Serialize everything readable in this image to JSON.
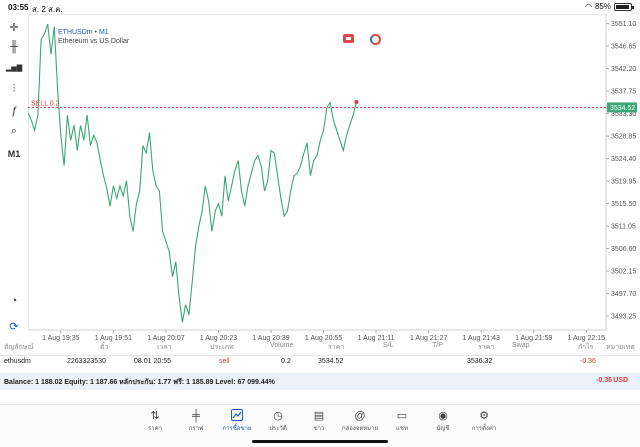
{
  "status": {
    "time": "03:55",
    "date": "ส. 2 ส.ค.",
    "battery": "85%"
  },
  "chart": {
    "symbol_line": "ETHUSDm • M1",
    "description": "Ethereum vs US Dollar",
    "sell_label": "SELL 0.2",
    "current_price_label": "3534.52",
    "colors": {
      "line": "#3aa874",
      "sell": "#e03b3b",
      "current": "#3aa874"
    },
    "toolbar": [
      {
        "name": "crosshair-icon",
        "glyph": "✛"
      },
      {
        "name": "candles-icon",
        "glyph": "╫"
      },
      {
        "name": "bar-type-icon",
        "glyph": "▂▅▇"
      },
      {
        "name": "indicators-icon",
        "glyph": "⫶"
      },
      {
        "name": "function-icon",
        "glyph": "ƒ"
      },
      {
        "name": "objects-icon",
        "glyph": "⌕"
      },
      {
        "name": "timeframe",
        "glyph": "M1"
      }
    ],
    "bottom_tools": [
      {
        "name": "speedometer-icon",
        "glyph": "◔"
      },
      {
        "name": "sync-icon",
        "glyph": "⟳"
      }
    ]
  },
  "chart_data": {
    "type": "line",
    "y_ticks": [
      "3551.10",
      "3546.65",
      "3542.20",
      "3537.75",
      "3533.30",
      "3528.85",
      "3524.40",
      "3519.95",
      "3515.50",
      "3511.05",
      "3506.60",
      "3502.15",
      "3497.70",
      "3493.25"
    ],
    "x_ticks": [
      "1 Aug 19:35",
      "1 Aug 19:51",
      "1 Aug 20:07",
      "1 Aug 20:23",
      "1 Aug 20:39",
      "1 Aug 20:55",
      "1 Aug 21:11",
      "1 Aug 21:27",
      "1 Aug 21:43",
      "1 Aug 21:59",
      "1 Aug 22:15"
    ],
    "ylim": [
      3490.5,
      3553.0
    ],
    "x_range_minutes": [
      0,
      176
    ],
    "sell_price": 3534.52,
    "current_price": 3534.52,
    "series": [
      {
        "values": [
          [
            0,
            3533.5
          ],
          [
            1,
            3532.0
          ],
          [
            2,
            3530.0
          ],
          [
            3,
            3533.0
          ],
          [
            4,
            3548.0
          ],
          [
            5,
            3549.0
          ],
          [
            6,
            3551.0
          ],
          [
            7,
            3545.0
          ],
          [
            8,
            3550.5
          ],
          [
            9,
            3538.0
          ],
          [
            10,
            3529.0
          ],
          [
            11,
            3523.0
          ],
          [
            12,
            3533.0
          ],
          [
            13,
            3528.0
          ],
          [
            14,
            3531.0
          ],
          [
            15,
            3526.0
          ],
          [
            16,
            3531.0
          ],
          [
            17,
            3528.0
          ],
          [
            18,
            3533.0
          ],
          [
            19,
            3527.0
          ],
          [
            20,
            3529.0
          ],
          [
            21,
            3527.5
          ],
          [
            22,
            3524.0
          ],
          [
            23,
            3521.0
          ],
          [
            24,
            3518.5
          ],
          [
            25,
            3515.0
          ],
          [
            26,
            3519.0
          ],
          [
            27,
            3516.5
          ],
          [
            28,
            3519.0
          ],
          [
            29,
            3517.0
          ],
          [
            30,
            3520.0
          ],
          [
            31,
            3513.0
          ],
          [
            32,
            3510.0
          ],
          [
            33,
            3515.5
          ],
          [
            34,
            3518.0
          ],
          [
            35,
            3527.0
          ],
          [
            36,
            3525.5
          ],
          [
            37,
            3529.5
          ],
          [
            38,
            3522.0
          ],
          [
            39,
            3519.0
          ],
          [
            40,
            3518.0
          ],
          [
            41,
            3510.0
          ],
          [
            42,
            3508.0
          ],
          [
            43,
            3506.0
          ],
          [
            44,
            3501.0
          ],
          [
            45,
            3504.0
          ],
          [
            46,
            3497.0
          ],
          [
            47,
            3492.0
          ],
          [
            48,
            3495.5
          ],
          [
            49,
            3493.5
          ],
          [
            50,
            3500.0
          ],
          [
            51,
            3507.0
          ],
          [
            52,
            3511.0
          ],
          [
            53,
            3514.0
          ],
          [
            54,
            3519.0
          ],
          [
            55,
            3516.0
          ],
          [
            56,
            3510.0
          ],
          [
            57,
            3514.0
          ],
          [
            58,
            3515.5
          ],
          [
            59,
            3513.0
          ],
          [
            60,
            3521.0
          ],
          [
            61,
            3516.0
          ],
          [
            62,
            3519.0
          ],
          [
            63,
            3522.0
          ],
          [
            64,
            3524.0
          ],
          [
            65,
            3518.0
          ],
          [
            66,
            3515.0
          ],
          [
            67,
            3519.0
          ],
          [
            68,
            3521.5
          ],
          [
            69,
            3524.0
          ],
          [
            70,
            3525.0
          ],
          [
            71,
            3523.0
          ],
          [
            72,
            3518.0
          ],
          [
            73,
            3520.0
          ],
          [
            74,
            3526.0
          ],
          [
            75,
            3525.5
          ],
          [
            76,
            3521.0
          ],
          [
            77,
            3516.5
          ],
          [
            78,
            3513.0
          ],
          [
            79,
            3514.0
          ],
          [
            80,
            3518.0
          ],
          [
            81,
            3521.0
          ],
          [
            82,
            3521.5
          ],
          [
            83,
            3523.0
          ],
          [
            84,
            3525.5
          ],
          [
            85,
            3527.5
          ],
          [
            86,
            3521.0
          ],
          [
            87,
            3524.0
          ],
          [
            88,
            3525.0
          ],
          [
            89,
            3528.0
          ],
          [
            90,
            3530.0
          ],
          [
            91,
            3534.5
          ],
          [
            92,
            3535.5
          ],
          [
            93,
            3532.0
          ],
          [
            94,
            3530.0
          ],
          [
            95,
            3528.0
          ],
          [
            96,
            3526.0
          ],
          [
            97,
            3529.0
          ],
          [
            98,
            3531.0
          ],
          [
            99,
            3533.0
          ],
          [
            100,
            3535.6
          ]
        ]
      }
    ]
  },
  "table": {
    "headers": [
      "สัญลักษณ์",
      "ตั๋ว",
      "เวลา",
      "ประเภท",
      "Volume",
      "ราคา",
      "S/L",
      "T/P",
      "ราคา",
      "Swap",
      "กำไร",
      "หมายเหตุ"
    ],
    "row": {
      "symbol": "ethusdm",
      "ticket": "2263323530",
      "time": "08.01 20:55",
      "type": "sell",
      "volume": "0.2",
      "price": "3534.52",
      "sl": "",
      "tp": "",
      "current": "3536.32",
      "swap": "",
      "profit": "-0.36",
      "comment": ""
    }
  },
  "balance": {
    "text": "Balance: 1 188.02 Equity: 1 187.66 หลักประกัน: 1.77 ฟรี: 1 185.89 Level: 67 099.44%",
    "profit": "-0.36",
    "currency": "USD"
  },
  "nav": [
    {
      "name": "nav-quotes",
      "icon": "quotes-icon",
      "glyph": "⇅",
      "label": "ราคา"
    },
    {
      "name": "nav-chart",
      "icon": "chart-icon",
      "glyph": "╪",
      "label": "กราฟ"
    },
    {
      "name": "nav-trade",
      "icon": "trade-icon",
      "glyph": "📈",
      "label": "การซื้อขาย"
    },
    {
      "name": "nav-history",
      "icon": "history-icon",
      "glyph": "◷",
      "label": "ประวัติ"
    },
    {
      "name": "nav-news",
      "icon": "news-icon",
      "glyph": "▤",
      "label": "ข่าว"
    },
    {
      "name": "nav-mailbox",
      "icon": "mailbox-icon",
      "glyph": "@",
      "label": "กล่องจดหมาย"
    },
    {
      "name": "nav-chat",
      "icon": "chat-icon",
      "glyph": "▭",
      "label": "แชท"
    },
    {
      "name": "nav-account",
      "icon": "account-icon",
      "glyph": "◉",
      "label": "บัญชี"
    },
    {
      "name": "nav-settings",
      "icon": "settings-icon",
      "glyph": "⚙",
      "label": "การตั้งค่า"
    }
  ]
}
